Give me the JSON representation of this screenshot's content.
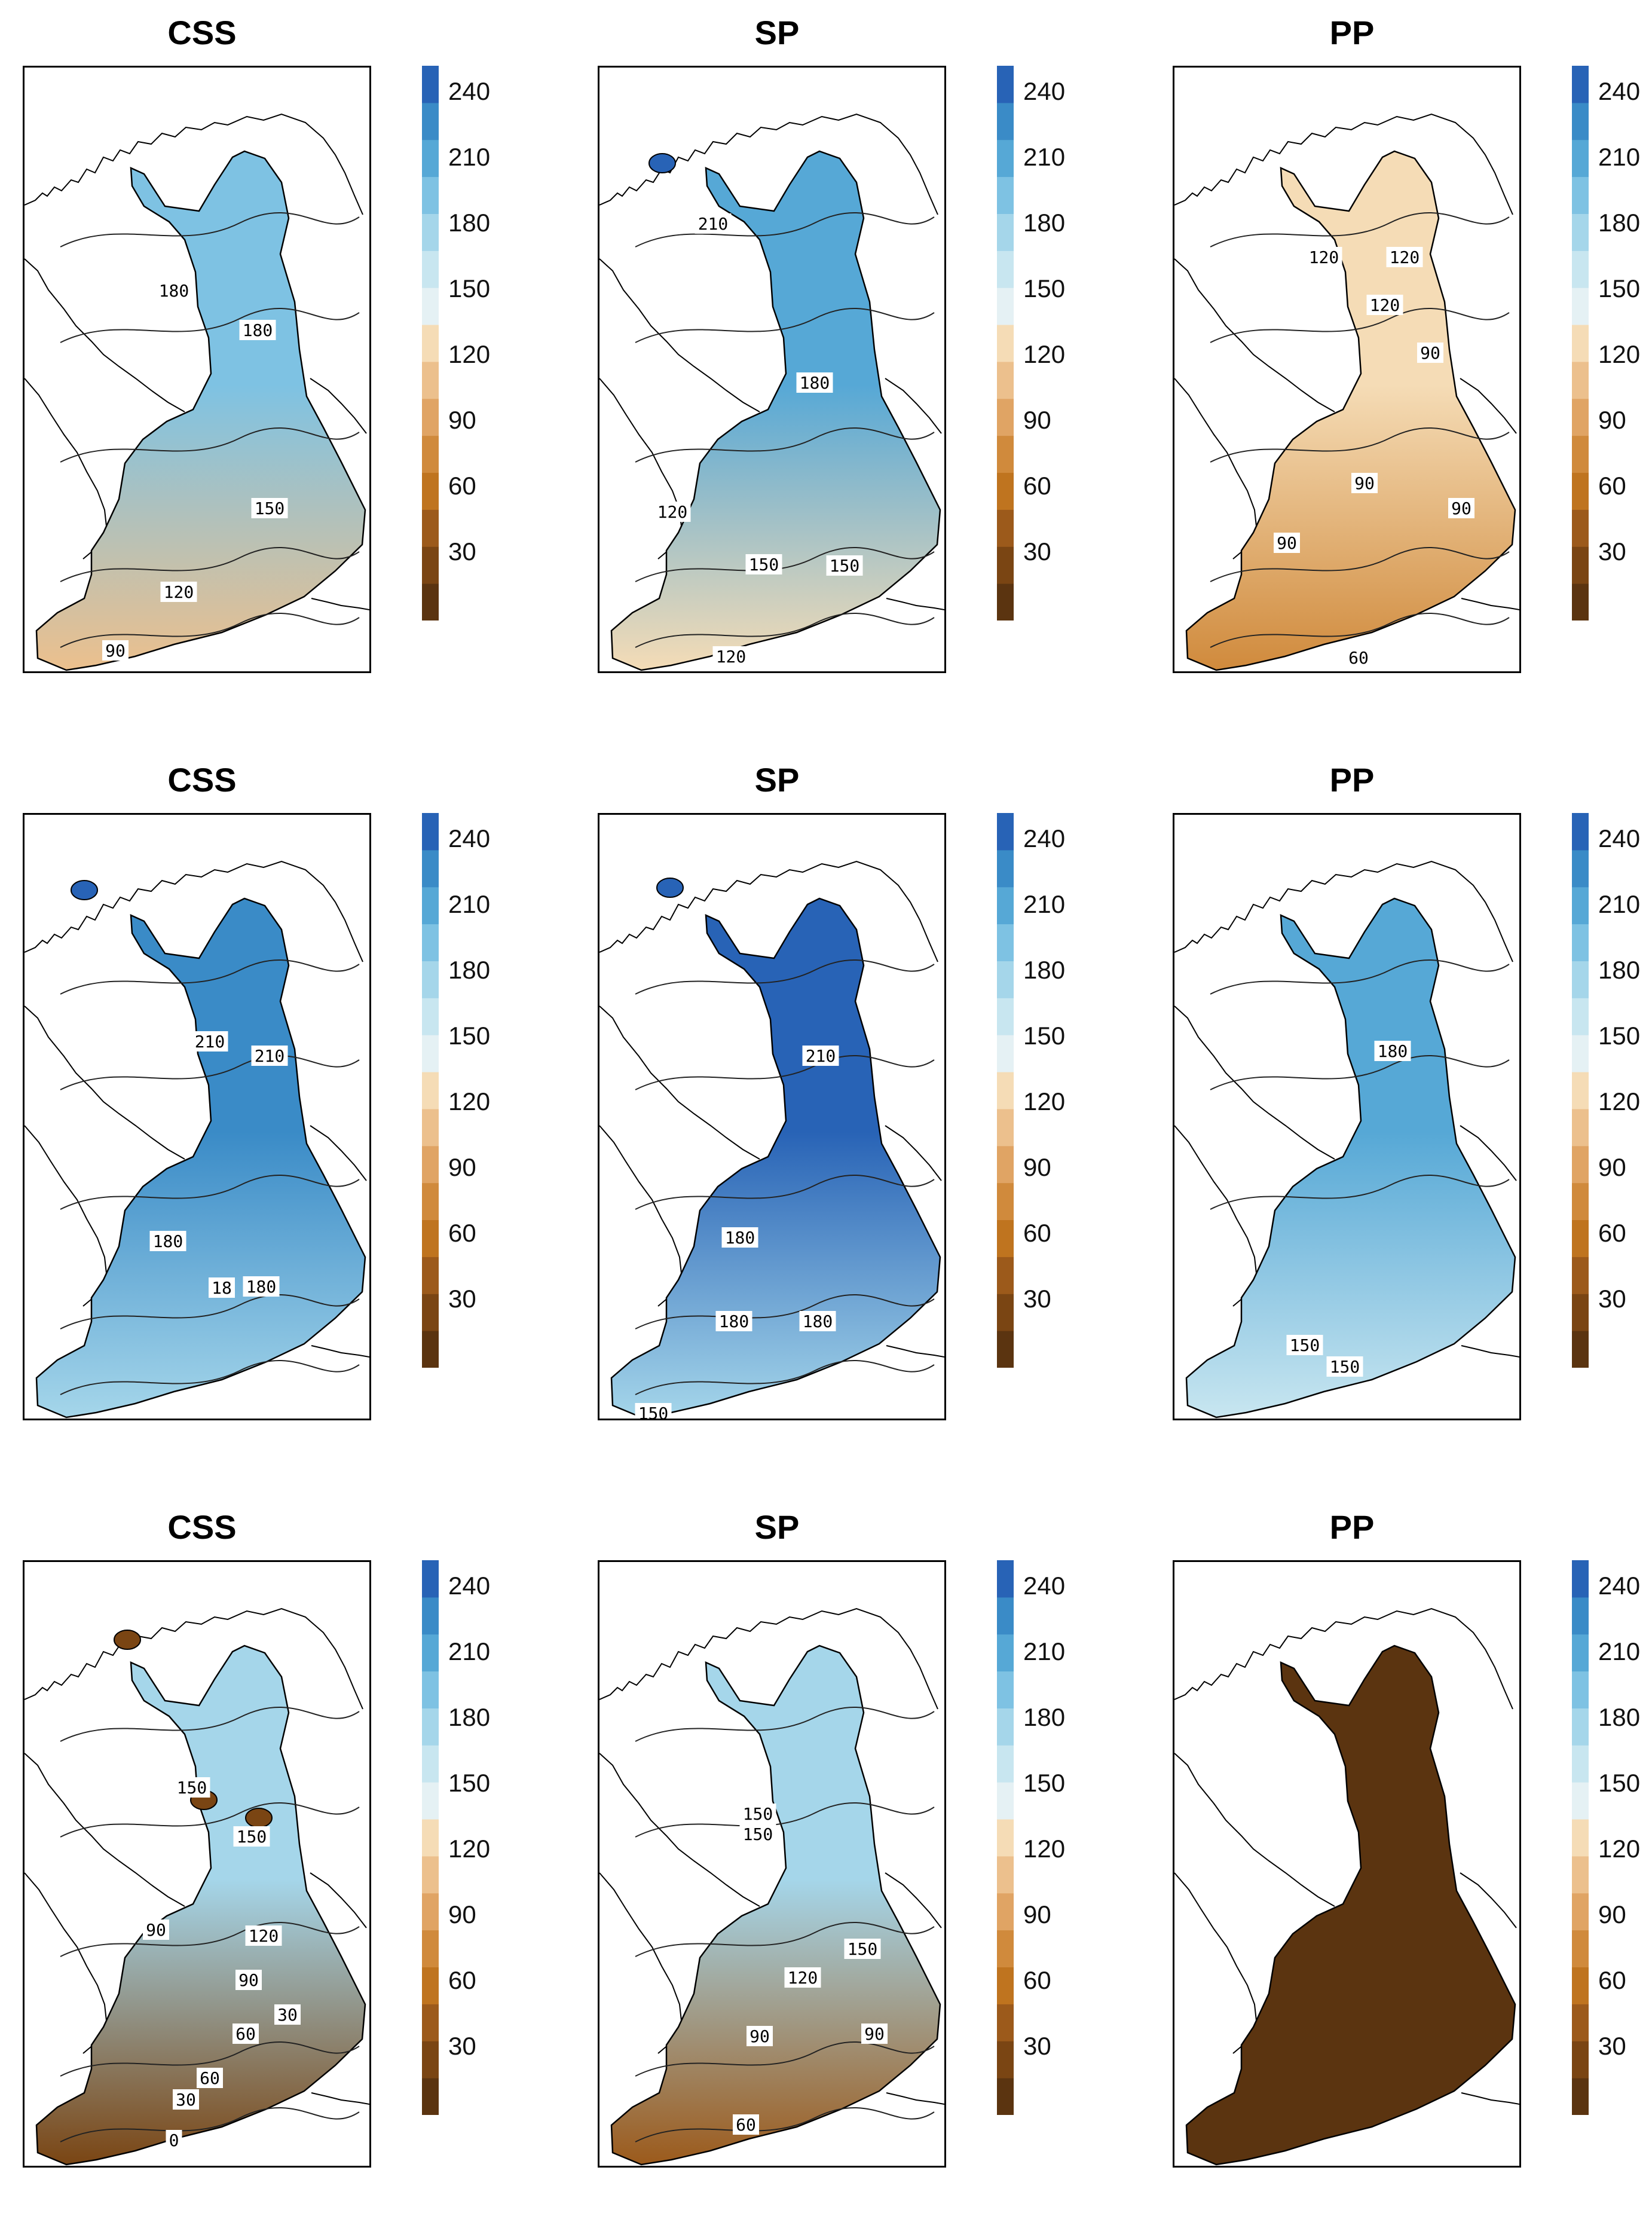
{
  "colors": {
    "scale": [
      "#5b3410",
      "#7a4513",
      "#9c5a1b",
      "#bf741f",
      "#d08a3c",
      "#e0a464",
      "#ecc08d",
      "#f5dcb6",
      "#e5f1f4",
      "#c8e6f0",
      "#a5d6ea",
      "#7ec2e3",
      "#56a8d6",
      "#3a8bc7",
      "#2863b6"
    ],
    "coast": "#000000"
  },
  "colorbar": {
    "ticks": [
      "240",
      "210",
      "180",
      "150",
      "120",
      "90",
      "60",
      "30"
    ]
  },
  "chart_data": [
    {
      "type": "heatmap",
      "title": "CSS",
      "row": 1,
      "color_range": [
        0,
        255
      ],
      "map_fill_low": "#ecc08d",
      "map_fill_high": "#7ec2e3",
      "contours": [
        "180",
        "180",
        "150",
        "120",
        "90"
      ]
    },
    {
      "type": "heatmap",
      "title": "SP",
      "row": 1,
      "color_range": [
        0,
        255
      ],
      "map_fill_low": "#f5dcb6",
      "map_fill_high": "#56a8d6",
      "contours": [
        "210",
        "180",
        "120",
        "150",
        "150",
        "120"
      ]
    },
    {
      "type": "heatmap",
      "title": "PP",
      "row": 1,
      "color_range": [
        0,
        255
      ],
      "map_fill_low": "#d08a3c",
      "map_fill_high": "#f5dcb6",
      "contours": [
        "120",
        "120",
        "120",
        "90",
        "90",
        "90",
        "90",
        "60"
      ]
    },
    {
      "type": "heatmap",
      "title": "CSS",
      "row": 2,
      "color_range": [
        0,
        255
      ],
      "map_fill_low": "#a5d6ea",
      "map_fill_high": "#3a8bc7",
      "contours": [
        "210",
        "210",
        "180",
        "18",
        "180"
      ]
    },
    {
      "type": "heatmap",
      "title": "SP",
      "row": 2,
      "color_range": [
        0,
        255
      ],
      "map_fill_low": "#a5d6ea",
      "map_fill_high": "#2863b6",
      "contours": [
        "210",
        "180",
        "180",
        "180",
        "150"
      ]
    },
    {
      "type": "heatmap",
      "title": "PP",
      "row": 2,
      "color_range": [
        0,
        255
      ],
      "map_fill_low": "#c8e6f0",
      "map_fill_high": "#56a8d6",
      "contours": [
        "180",
        "150",
        "150"
      ]
    },
    {
      "type": "heatmap",
      "title": "CSS",
      "row": 3,
      "color_range": [
        0,
        255
      ],
      "map_fill_low": "#7a4513",
      "map_fill_high": "#a5d6ea",
      "contours": [
        "150",
        "150",
        "90",
        "120",
        "90",
        "30",
        "60",
        "60",
        "30",
        "0"
      ]
    },
    {
      "type": "heatmap",
      "title": "SP",
      "row": 3,
      "color_range": [
        0,
        255
      ],
      "map_fill_low": "#9c5a1b",
      "map_fill_high": "#a5d6ea",
      "contours": [
        "150",
        "150",
        "150",
        "120",
        "90",
        "90",
        "60"
      ]
    },
    {
      "type": "heatmap",
      "title": "PP",
      "row": 3,
      "color_range": [
        0,
        255
      ],
      "map_fill_low": "#5b3410",
      "map_fill_high": "#5b3410",
      "contours": []
    }
  ]
}
